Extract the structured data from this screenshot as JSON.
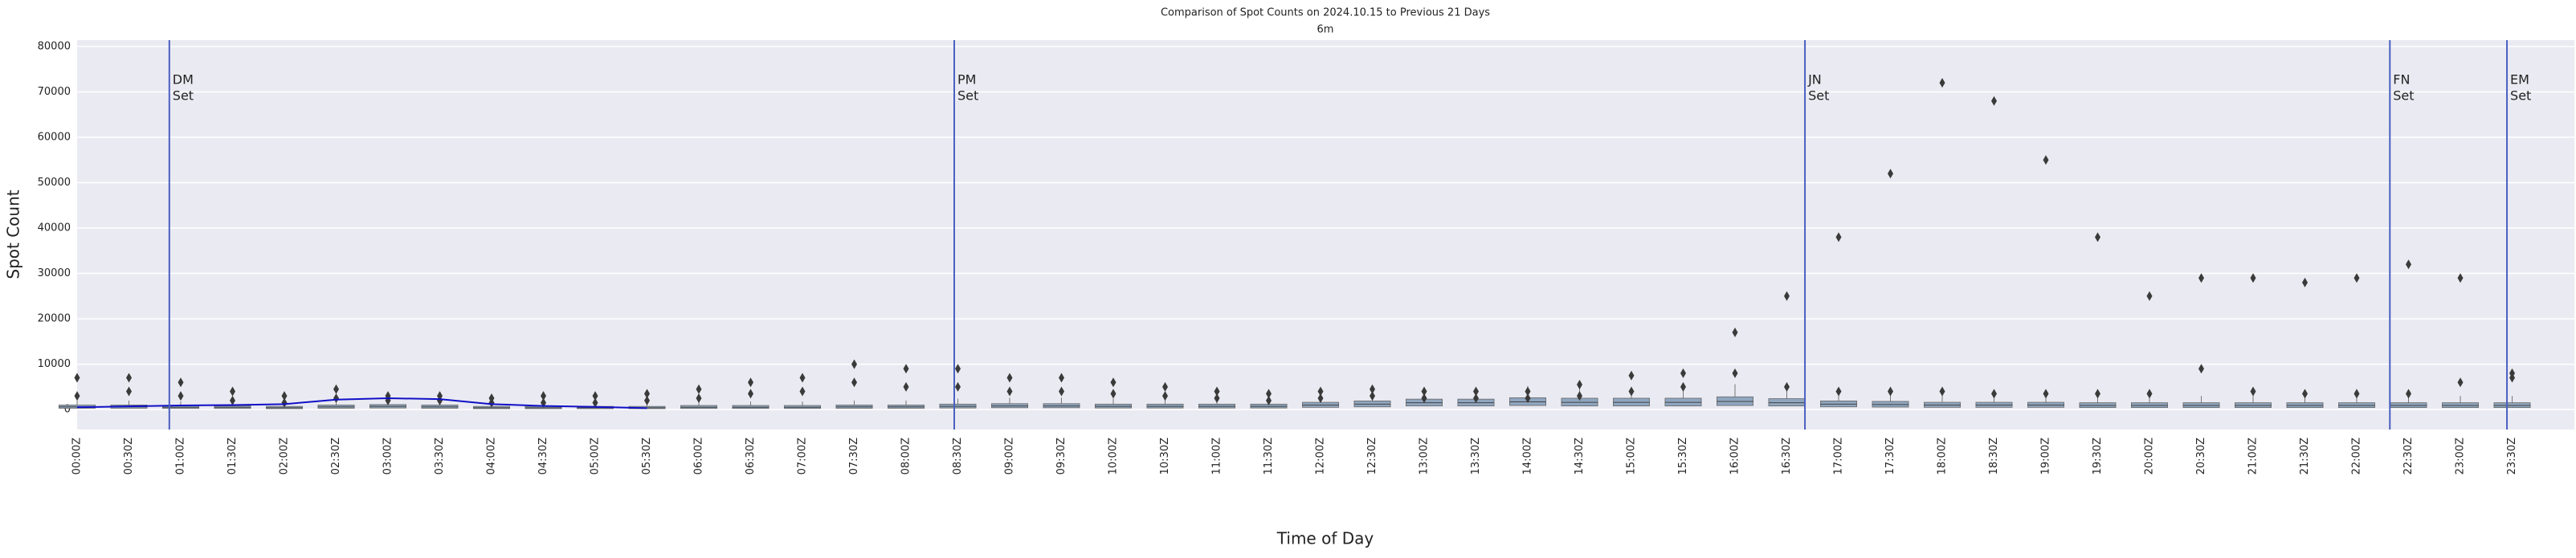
{
  "chart_data": {
    "type": "box",
    "title": "Comparison of Spot Counts on 2024.10.15 to Previous 21 Days",
    "subtitle": "6m",
    "x_label": "Time of Day",
    "y_label": "Spot Count",
    "categories": [
      "00:00Z",
      "00:30Z",
      "01:00Z",
      "01:30Z",
      "02:00Z",
      "02:30Z",
      "03:00Z",
      "03:30Z",
      "04:00Z",
      "04:30Z",
      "05:00Z",
      "05:30Z",
      "06:00Z",
      "06:30Z",
      "07:00Z",
      "07:30Z",
      "08:00Z",
      "08:30Z",
      "09:00Z",
      "09:30Z",
      "10:00Z",
      "10:30Z",
      "11:00Z",
      "11:30Z",
      "12:00Z",
      "12:30Z",
      "13:00Z",
      "13:30Z",
      "14:00Z",
      "14:30Z",
      "15:00Z",
      "15:30Z",
      "16:00Z",
      "16:30Z",
      "17:00Z",
      "17:30Z",
      "18:00Z",
      "18:30Z",
      "19:00Z",
      "19:30Z",
      "20:00Z",
      "20:30Z",
      "21:00Z",
      "21:30Z",
      "22:00Z",
      "22:30Z",
      "23:00Z",
      "23:30Z"
    ],
    "q1": [
      300,
      300,
      250,
      250,
      200,
      300,
      350,
      300,
      200,
      200,
      200,
      200,
      250,
      250,
      250,
      300,
      300,
      350,
      400,
      400,
      350,
      350,
      350,
      350,
      500,
      600,
      800,
      800,
      900,
      800,
      800,
      800,
      900,
      800,
      600,
      550,
      500,
      500,
      500,
      450,
      450,
      450,
      450,
      450,
      450,
      450,
      450,
      450
    ],
    "median": [
      600,
      600,
      500,
      500,
      400,
      600,
      700,
      600,
      400,
      400,
      400,
      400,
      500,
      500,
      500,
      600,
      600,
      700,
      800,
      800,
      700,
      700,
      700,
      700,
      1000,
      1200,
      1500,
      1500,
      1700,
      1600,
      1600,
      1600,
      1800,
      1500,
      1200,
      1100,
      1000,
      1000,
      1000,
      900,
      900,
      900,
      900,
      900,
      900,
      900,
      900,
      900
    ],
    "q3": [
      1000,
      1000,
      900,
      800,
      700,
      1000,
      1100,
      1000,
      700,
      700,
      700,
      700,
      900,
      900,
      900,
      1000,
      1000,
      1200,
      1300,
      1300,
      1200,
      1200,
      1200,
      1200,
      1600,
      1900,
      2300,
      2300,
      2600,
      2500,
      2500,
      2500,
      2800,
      2400,
      1900,
      1800,
      1600,
      1600,
      1600,
      1500,
      1500,
      1500,
      1500,
      1500,
      1500,
      1500,
      1500,
      1500
    ],
    "whisker_high": [
      2000,
      2000,
      1800,
      1600,
      1400,
      2000,
      2200,
      2000,
      1400,
      1400,
      1400,
      1400,
      1800,
      1800,
      1800,
      2000,
      2000,
      2400,
      2600,
      2600,
      2400,
      2400,
      2400,
      2400,
      3200,
      3800,
      4600,
      4600,
      5200,
      5000,
      5000,
      5000,
      5600,
      4800,
      3800,
      3600,
      3200,
      3200,
      3200,
      3000,
      3000,
      3000,
      3000,
      3000,
      3000,
      3000,
      3000,
      3000
    ],
    "outliers": [
      [
        7000,
        3000
      ],
      [
        7000,
        4000
      ],
      [
        6000,
        3000
      ],
      [
        4000,
        2000
      ],
      [
        3000,
        1500
      ],
      [
        4500,
        2500
      ],
      [
        3000,
        2000
      ],
      [
        3000,
        2000
      ],
      [
        2500,
        1500
      ],
      [
        3000,
        1500
      ],
      [
        3000,
        1500
      ],
      [
        3500,
        2000
      ],
      [
        4500,
        2500
      ],
      [
        6000,
        3500
      ],
      [
        7000,
        4000
      ],
      [
        10000,
        6000
      ],
      [
        9000,
        5000
      ],
      [
        9000,
        5000
      ],
      [
        7000,
        4000
      ],
      [
        7000,
        4000
      ],
      [
        6000,
        3500
      ],
      [
        5000,
        3000
      ],
      [
        4000,
        2500
      ],
      [
        3500,
        2000
      ],
      [
        4000,
        2500
      ],
      [
        4500,
        3000
      ],
      [
        4000,
        2500
      ],
      [
        4000,
        2500
      ],
      [
        4000,
        2500
      ],
      [
        5500,
        3000
      ],
      [
        7500,
        4000
      ],
      [
        8000,
        5000
      ],
      [
        17000,
        8000
      ],
      [
        25000,
        5000
      ],
      [
        38000,
        4000
      ],
      [
        52000,
        4000
      ],
      [
        72000,
        4000
      ],
      [
        68000,
        3500
      ],
      [
        55000,
        3500
      ],
      [
        38000,
        3500
      ],
      [
        25000,
        3500
      ],
      [
        29000,
        9000
      ],
      [
        29000,
        4000
      ],
      [
        28000,
        3500
      ],
      [
        29000,
        3500
      ],
      [
        32000,
        3500
      ],
      [
        29000,
        6000
      ],
      [
        8000,
        7000
      ]
    ],
    "box_color": "#8fa6bf",
    "outlier_color": "#3a3a3a",
    "series": [
      {
        "name": "2024.10.15",
        "color": "#1010c8",
        "values": [
          500,
          700,
          900,
          1000,
          1200,
          2200,
          2500,
          2300,
          1200,
          800,
          600,
          300,
          null,
          null,
          null,
          null,
          null,
          null,
          null,
          null,
          null,
          null,
          null,
          null,
          null,
          null,
          null,
          null,
          null,
          null,
          null,
          null,
          null,
          null,
          null,
          null,
          null,
          null,
          null,
          null,
          null,
          null,
          null,
          null,
          null,
          null,
          null,
          null
        ]
      }
    ],
    "annotations": [
      {
        "lines": [
          "DM",
          "Set"
        ],
        "x": 1.78
      },
      {
        "lines": [
          "PM",
          "Set"
        ],
        "x": 16.93
      },
      {
        "lines": [
          "JN",
          "Set"
        ],
        "x": 33.35
      },
      {
        "lines": [
          "FN",
          "Set"
        ],
        "x": 44.64
      },
      {
        "lines": [
          "EM",
          "Set"
        ],
        "x": 46.9
      }
    ],
    "annotation_color": "#4a5fc1",
    "ylim": [
      -4400,
      81400
    ],
    "yticks": [
      0,
      10000,
      20000,
      30000,
      40000,
      50000,
      60000,
      70000,
      80000
    ],
    "grid": true
  }
}
